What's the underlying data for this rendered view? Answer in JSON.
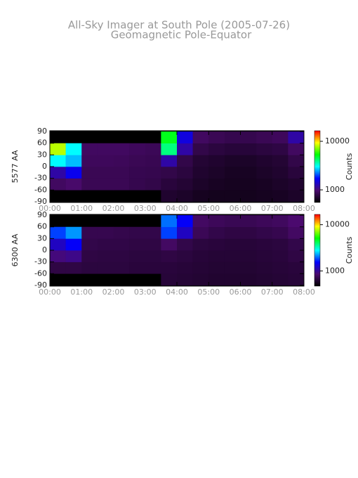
{
  "title": "All-Sky Imager at South Pole (2005-07-26)",
  "subtitle": "Geomagnetic Pole-Equator",
  "chart_data": [
    {
      "type": "heatmap",
      "ylabel": "5577 AA",
      "zlabel": "Counts",
      "log_z": true,
      "colorscale": [
        "#000000",
        "#4b0a6e",
        "#0000ff",
        "#00ffff",
        "#00ff00",
        "#ffff00",
        "#ff0000"
      ],
      "xlim": [
        0,
        8
      ],
      "ylim": [
        -92,
        92
      ],
      "xticks": [
        {
          "value": 0,
          "label": "00:00"
        },
        {
          "value": 1,
          "label": "01:00"
        },
        {
          "value": 2,
          "label": "02:00"
        },
        {
          "value": 3,
          "label": "03:00"
        },
        {
          "value": 4,
          "label": "04:00"
        },
        {
          "value": 5,
          "label": "05:00"
        },
        {
          "value": 6,
          "label": "06:00"
        },
        {
          "value": 7,
          "label": "07:00"
        },
        {
          "value": 8,
          "label": "08:00"
        }
      ],
      "yticks": [
        -90,
        -60,
        -30,
        0,
        30,
        60,
        90
      ],
      "x_bins": [
        0,
        0.5,
        1,
        1.5,
        2,
        2.5,
        3,
        3.5,
        4,
        4.5,
        5,
        5.5,
        6,
        6.5,
        7,
        7.5,
        8
      ],
      "y_bins": [
        -90,
        -60,
        -30,
        0,
        30,
        60,
        90
      ],
      "z": [
        [
          null,
          null,
          null,
          null,
          null,
          null,
          null,
          700,
          680,
          650,
          640,
          640,
          640,
          650,
          660,
          680
        ],
        [
          900,
          950,
          850,
          850,
          850,
          820,
          800,
          750,
          720,
          680,
          660,
          650,
          650,
          660,
          680,
          700
        ],
        [
          1200,
          1600,
          850,
          850,
          850,
          830,
          820,
          800,
          760,
          700,
          680,
          660,
          660,
          680,
          700,
          750
        ],
        [
          3000,
          2600,
          880,
          880,
          870,
          850,
          840,
          1200,
          800,
          720,
          700,
          680,
          680,
          700,
          720,
          800
        ],
        [
          8000,
          3000,
          900,
          900,
          900,
          880,
          860,
          4000,
          1200,
          800,
          760,
          740,
          740,
          760,
          780,
          900
        ],
        [
          null,
          null,
          null,
          null,
          null,
          null,
          null,
          5000,
          1500,
          900,
          850,
          820,
          820,
          850,
          880,
          1200
        ]
      ],
      "zlim": [
        550,
        16500
      ],
      "zticks": [
        1000,
        10000
      ]
    },
    {
      "type": "heatmap",
      "ylabel": "6300 AA",
      "zlabel": "Counts",
      "log_z": true,
      "colorscale": [
        "#000000",
        "#4b0a6e",
        "#0000ff",
        "#00ffff",
        "#00ff00",
        "#ffff00",
        "#ff0000"
      ],
      "xlim": [
        0,
        8
      ],
      "ylim": [
        -92,
        92
      ],
      "xticks": [
        {
          "value": 0,
          "label": "00:00"
        },
        {
          "value": 1,
          "label": "01:00"
        },
        {
          "value": 2,
          "label": "02:00"
        },
        {
          "value": 3,
          "label": "03:00"
        },
        {
          "value": 4,
          "label": "04:00"
        },
        {
          "value": 5,
          "label": "05:00"
        },
        {
          "value": 6,
          "label": "06:00"
        },
        {
          "value": 7,
          "label": "07:00"
        },
        {
          "value": 8,
          "label": "08:00"
        }
      ],
      "yticks": [
        -90,
        -60,
        -30,
        0,
        30,
        60,
        90
      ],
      "x_bins": [
        0,
        0.5,
        1,
        1.5,
        2,
        2.5,
        3,
        3.5,
        4,
        4.5,
        5,
        5.5,
        6,
        6.5,
        7,
        7.5,
        8
      ],
      "y_bins": [
        -90,
        -60,
        -30,
        0,
        30,
        60,
        90
      ],
      "z": [
        [
          null,
          null,
          null,
          null,
          null,
          null,
          null,
          640,
          630,
          620,
          610,
          610,
          610,
          620,
          630,
          640
        ],
        [
          680,
          680,
          660,
          660,
          660,
          650,
          650,
          650,
          640,
          630,
          620,
          620,
          620,
          630,
          640,
          650
        ],
        [
          900,
          950,
          680,
          670,
          670,
          660,
          660,
          680,
          660,
          640,
          630,
          630,
          630,
          640,
          650,
          680
        ],
        [
          1200,
          1500,
          700,
          690,
          690,
          680,
          680,
          800,
          700,
          660,
          650,
          640,
          640,
          650,
          660,
          700
        ],
        [
          1800,
          2200,
          720,
          720,
          710,
          700,
          700,
          1800,
          1200,
          750,
          700,
          680,
          680,
          700,
          720,
          800
        ],
        [
          null,
          null,
          null,
          null,
          null,
          null,
          null,
          2000,
          1500,
          800,
          760,
          740,
          740,
          760,
          780,
          850
        ]
      ],
      "zlim": [
        470,
        16700
      ],
      "zticks": [
        1000,
        10000
      ]
    }
  ]
}
